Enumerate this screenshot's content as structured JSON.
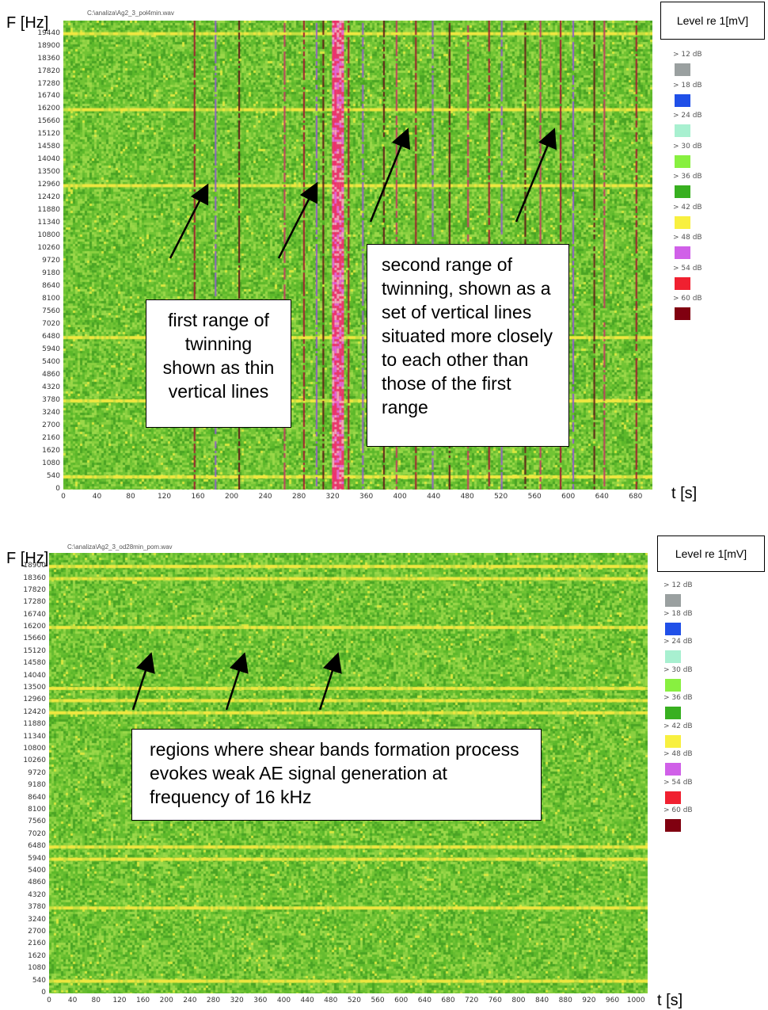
{
  "chart_data": [
    {
      "type": "heatmap",
      "filename": "C:\\analiza\\Ag2_3_poł4min.wav",
      "ylabel": "F [Hz]",
      "xlabel": "t [s]",
      "y_ticks": [
        "19440",
        "18900",
        "18360",
        "17820",
        "17280",
        "16740",
        "16200",
        "15660",
        "15120",
        "14580",
        "14040",
        "13500",
        "12960",
        "12420",
        "11880",
        "11340",
        "10800",
        "10260",
        "9720",
        "9180",
        "8640",
        "8100",
        "7560",
        "7020",
        "6480",
        "5940",
        "5400",
        "4860",
        "4320",
        "3780",
        "3240",
        "2700",
        "2160",
        "1620",
        "1080",
        "540",
        "0"
      ],
      "x_ticks": [
        "0",
        "40",
        "80",
        "120",
        "160",
        "200",
        "240",
        "280",
        "320",
        "360",
        "400",
        "440",
        "480",
        "520",
        "560",
        "600",
        "640",
        "680"
      ],
      "xlim": [
        0,
        700
      ],
      "ylim": [
        0,
        20000
      ],
      "legend_title": "Level re 1[mV]",
      "levels": [
        {
          "label": "> 12 dB",
          "color": "#9aa0a0"
        },
        {
          "label": "> 18 dB",
          "color": "#2050e8"
        },
        {
          "label": "> 24 dB",
          "color": "#a8f0d0"
        },
        {
          "label": "> 30 dB",
          "color": "#88f040"
        },
        {
          "label": "> 36 dB",
          "color": "#38b020"
        },
        {
          "label": "> 42 dB",
          "color": "#f8f040"
        },
        {
          "label": "> 48 dB",
          "color": "#d060e8"
        },
        {
          "label": "> 54 dB",
          "color": "#f02030"
        },
        {
          "label": "> 60 dB",
          "color": "#800010"
        }
      ],
      "horizontal_bands_hz": [
        19440,
        16200,
        12960,
        6480,
        3780,
        540
      ],
      "vertical_lines_s": [
        155,
        180,
        208,
        262,
        285,
        300,
        308,
        322,
        338,
        355,
        380,
        395,
        418,
        438,
        458,
        480,
        505,
        520,
        548,
        566,
        590,
        605,
        630,
        642,
        680
      ],
      "strong_burst_s": 325,
      "annotations": [
        {
          "text": "first range of twinning shown as thin vertical lines"
        },
        {
          "text": "second range of twinning, shown as a set of vertical lines situated more closely to each other than those of the first range"
        }
      ]
    },
    {
      "type": "heatmap",
      "filename": "C:\\analiza\\Ag2_3_od28min_pom.wav",
      "ylabel": "F [Hz]",
      "xlabel": "t [s]",
      "y_ticks": [
        "18900",
        "18360",
        "17820",
        "17280",
        "16740",
        "16200",
        "15660",
        "15120",
        "14580",
        "14040",
        "13500",
        "12960",
        "12420",
        "11880",
        "11340",
        "10800",
        "10260",
        "9720",
        "9180",
        "8640",
        "8100",
        "7560",
        "7020",
        "6480",
        "5940",
        "5400",
        "4860",
        "4320",
        "3780",
        "3240",
        "2700",
        "2160",
        "1620",
        "1080",
        "540",
        "0"
      ],
      "x_ticks": [
        "0",
        "40",
        "80",
        "120",
        "160",
        "200",
        "240",
        "280",
        "320",
        "360",
        "400",
        "440",
        "480",
        "520",
        "560",
        "600",
        "640",
        "680",
        "720",
        "760",
        "800",
        "840",
        "880",
        "920",
        "960",
        "1000"
      ],
      "xlim": [
        0,
        1020
      ],
      "ylim": [
        0,
        19500
      ],
      "legend_title": "Level re 1[mV]",
      "levels": [
        {
          "label": "> 12 dB",
          "color": "#9aa0a0"
        },
        {
          "label": "> 18 dB",
          "color": "#2050e8"
        },
        {
          "label": "> 24 dB",
          "color": "#a8f0d0"
        },
        {
          "label": "> 30 dB",
          "color": "#88f040"
        },
        {
          "label": "> 36 dB",
          "color": "#38b020"
        },
        {
          "label": "> 42 dB",
          "color": "#f8f040"
        },
        {
          "label": "> 48 dB",
          "color": "#d060e8"
        },
        {
          "label": "> 54 dB",
          "color": "#f02030"
        },
        {
          "label": "> 60 dB",
          "color": "#800010"
        }
      ],
      "horizontal_bands_hz": [
        18900,
        18360,
        16200,
        13500,
        12960,
        12420,
        6480,
        5940,
        3780,
        540
      ],
      "annotations": [
        {
          "text": "regions where shear bands formation process evokes weak AE signal generation at frequency of 16 kHz"
        }
      ]
    }
  ]
}
